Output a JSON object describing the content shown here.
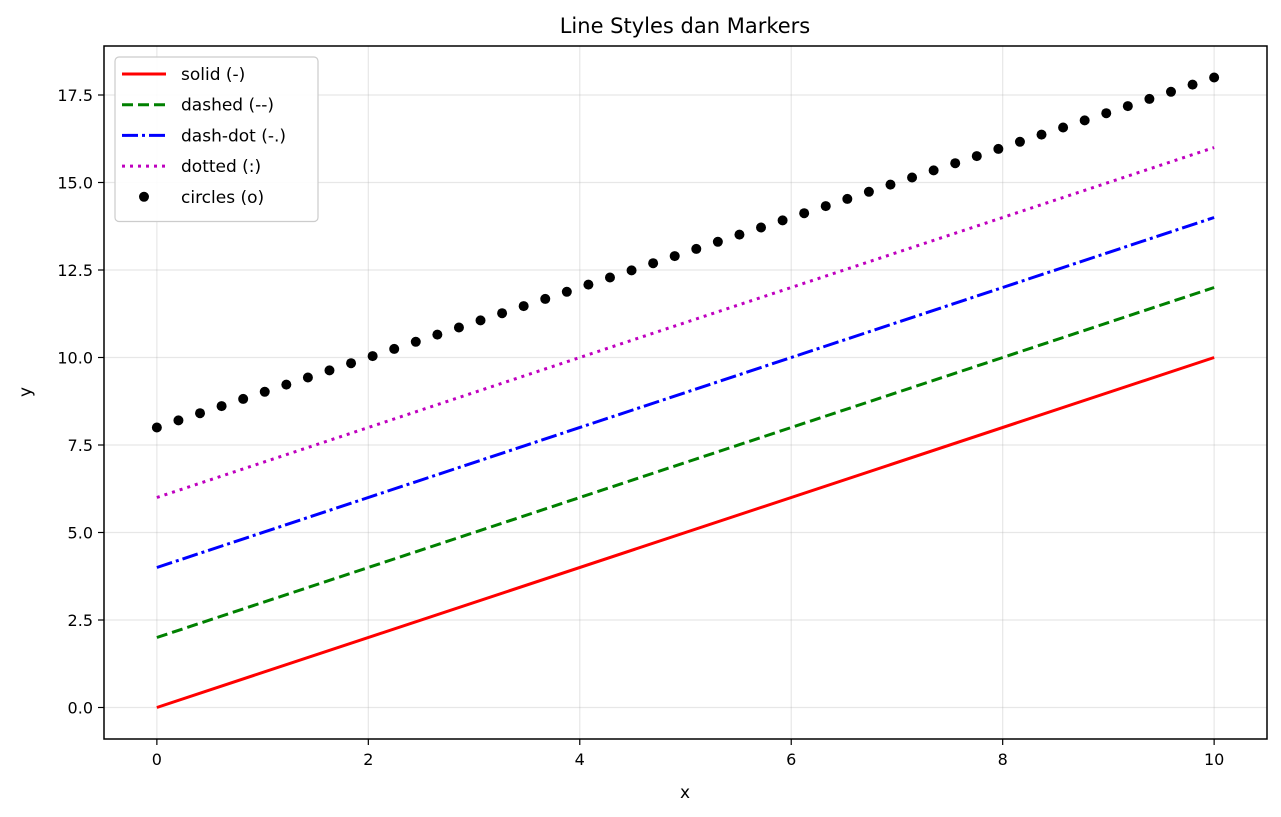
{
  "chart_data": {
    "type": "line",
    "title": "Line Styles dan Markers",
    "xlabel": "x",
    "ylabel": "y",
    "xlim": [
      -0.5,
      10.5
    ],
    "ylim": [
      -0.9,
      18.9
    ],
    "xticks": [
      0,
      2,
      4,
      6,
      8,
      10
    ],
    "xtick_labels": [
      "0",
      "2",
      "4",
      "6",
      "8",
      "10"
    ],
    "yticks": [
      0,
      2.5,
      5,
      7.5,
      10,
      12.5,
      15,
      17.5
    ],
    "ytick_labels": [
      "0.0",
      "2.5",
      "5.0",
      "7.5",
      "10.0",
      "12.5",
      "15.0",
      "17.5"
    ],
    "grid": true,
    "legend_position": "top-left",
    "series": [
      {
        "name": "solid (-)",
        "style": "solid",
        "marker": "none",
        "color": "#ff0000",
        "slope": 1,
        "intercept": 0,
        "x": [
          0,
          10
        ],
        "y": [
          0,
          10
        ]
      },
      {
        "name": "dashed (--)",
        "style": "dashed",
        "marker": "none",
        "color": "#008000",
        "slope": 1,
        "intercept": 2,
        "x": [
          0,
          10
        ],
        "y": [
          2,
          12
        ]
      },
      {
        "name": "dash-dot (-.)",
        "style": "dashdot",
        "marker": "none",
        "color": "#0000ff",
        "slope": 1,
        "intercept": 4,
        "x": [
          0,
          10
        ],
        "y": [
          4,
          14
        ]
      },
      {
        "name": "dotted (:)",
        "style": "dotted",
        "marker": "none",
        "color": "#bf00bf",
        "slope": 1,
        "intercept": 6,
        "x": [
          0,
          10
        ],
        "y": [
          6,
          16
        ]
      },
      {
        "name": "circles (o)",
        "style": "none",
        "marker": "circle",
        "color": "#000000",
        "slope": 1,
        "intercept": 8,
        "x_start": 0,
        "x_end": 10,
        "num_points": 50
      }
    ]
  }
}
